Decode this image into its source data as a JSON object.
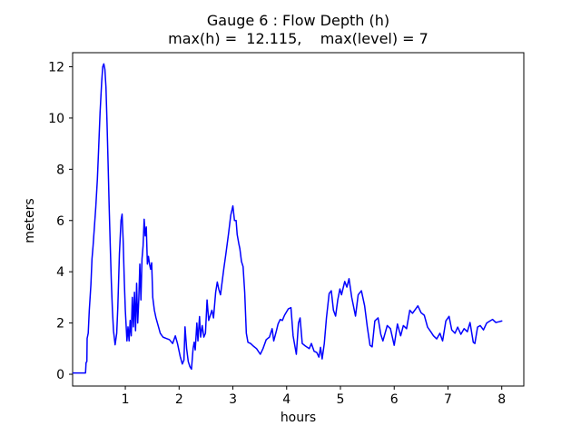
{
  "chart": {
    "title": "Gauge 6 : Flow Depth (h)",
    "subtitle": "max(h) =  12.115,    max(level) = 7",
    "xlabel": "hours",
    "ylabel": "meters"
  },
  "chart_data": {
    "type": "line",
    "title": "Gauge 6 : Flow Depth (h)",
    "subtitle": "max(h) =  12.115,    max(level) = 7",
    "xlabel": "hours",
    "ylabel": "meters",
    "max_h": 12.115,
    "max_level": 7,
    "line_color": "#0000ff",
    "background": "#ffffff",
    "axis_color": "#000000",
    "grid": false,
    "legend": false,
    "xlim": [
      0.02,
      8.41
    ],
    "ylim": [
      -0.46,
      12.55
    ],
    "xticks": [
      1,
      2,
      3,
      4,
      5,
      6,
      7,
      8
    ],
    "yticks": [
      0,
      2,
      4,
      6,
      8,
      10,
      12
    ],
    "series": [
      {
        "name": "flow-depth-h",
        "points": [
          [
            0.03,
            0.05
          ],
          [
            0.26,
            0.05
          ],
          [
            0.27,
            0.45
          ],
          [
            0.285,
            0.5
          ],
          [
            0.29,
            1.4
          ],
          [
            0.31,
            1.6
          ],
          [
            0.33,
            2.5
          ],
          [
            0.36,
            3.5
          ],
          [
            0.38,
            4.5
          ],
          [
            0.4,
            5.0
          ],
          [
            0.42,
            5.6
          ],
          [
            0.45,
            6.5
          ],
          [
            0.48,
            7.6
          ],
          [
            0.5,
            8.6
          ],
          [
            0.53,
            10.2
          ],
          [
            0.56,
            11.4
          ],
          [
            0.58,
            12.0
          ],
          [
            0.6,
            12.115
          ],
          [
            0.62,
            11.9
          ],
          [
            0.64,
            11.2
          ],
          [
            0.66,
            9.8
          ],
          [
            0.68,
            8.2
          ],
          [
            0.7,
            6.5
          ],
          [
            0.72,
            5.0
          ],
          [
            0.74,
            3.6
          ],
          [
            0.76,
            2.5
          ],
          [
            0.78,
            1.7
          ],
          [
            0.81,
            1.15
          ],
          [
            0.84,
            1.6
          ],
          [
            0.86,
            2.6
          ],
          [
            0.89,
            4.7
          ],
          [
            0.92,
            6.0
          ],
          [
            0.94,
            6.25
          ],
          [
            0.96,
            5.2
          ],
          [
            0.98,
            3.7
          ],
          [
            1.0,
            2.5
          ],
          [
            1.03,
            1.3
          ],
          [
            1.05,
            1.85
          ],
          [
            1.07,
            1.3
          ],
          [
            1.09,
            2.1
          ],
          [
            1.11,
            1.5
          ],
          [
            1.13,
            3.0
          ],
          [
            1.15,
            1.85
          ],
          [
            1.17,
            3.2
          ],
          [
            1.19,
            1.7
          ],
          [
            1.21,
            3.55
          ],
          [
            1.23,
            2.0
          ],
          [
            1.25,
            2.9
          ],
          [
            1.27,
            4.3
          ],
          [
            1.29,
            2.9
          ],
          [
            1.31,
            4.5
          ],
          [
            1.33,
            5.0
          ],
          [
            1.35,
            6.05
          ],
          [
            1.37,
            5.4
          ],
          [
            1.39,
            5.75
          ],
          [
            1.41,
            4.3
          ],
          [
            1.43,
            4.6
          ],
          [
            1.45,
            4.3
          ],
          [
            1.47,
            4.1
          ],
          [
            1.49,
            4.35
          ],
          [
            1.51,
            3.0
          ],
          [
            1.54,
            2.5
          ],
          [
            1.57,
            2.2
          ],
          [
            1.61,
            1.9
          ],
          [
            1.65,
            1.6
          ],
          [
            1.7,
            1.45
          ],
          [
            1.76,
            1.4
          ],
          [
            1.82,
            1.35
          ],
          [
            1.88,
            1.2
          ],
          [
            1.93,
            1.5
          ],
          [
            1.97,
            1.2
          ],
          [
            2.02,
            0.7
          ],
          [
            2.06,
            0.4
          ],
          [
            2.09,
            0.55
          ],
          [
            2.11,
            1.85
          ],
          [
            2.14,
            1.0
          ],
          [
            2.17,
            0.5
          ],
          [
            2.2,
            0.3
          ],
          [
            2.23,
            0.2
          ],
          [
            2.26,
            1.0
          ],
          [
            2.28,
            1.25
          ],
          [
            2.3,
            0.95
          ],
          [
            2.33,
            2.0
          ],
          [
            2.35,
            1.3
          ],
          [
            2.38,
            2.25
          ],
          [
            2.4,
            1.45
          ],
          [
            2.43,
            1.9
          ],
          [
            2.46,
            1.45
          ],
          [
            2.49,
            1.6
          ],
          [
            2.52,
            2.9
          ],
          [
            2.55,
            2.1
          ],
          [
            2.58,
            2.3
          ],
          [
            2.61,
            2.5
          ],
          [
            2.64,
            2.2
          ],
          [
            2.68,
            3.2
          ],
          [
            2.71,
            3.6
          ],
          [
            2.74,
            3.3
          ],
          [
            2.77,
            3.1
          ],
          [
            2.8,
            3.6
          ],
          [
            2.83,
            4.1
          ],
          [
            2.87,
            4.7
          ],
          [
            2.92,
            5.5
          ],
          [
            2.96,
            6.2
          ],
          [
            3.0,
            6.57
          ],
          [
            3.03,
            6.0
          ],
          [
            3.06,
            6.0
          ],
          [
            3.08,
            5.45
          ],
          [
            3.11,
            5.1
          ],
          [
            3.13,
            4.9
          ],
          [
            3.16,
            4.4
          ],
          [
            3.19,
            4.2
          ],
          [
            3.22,
            3.2
          ],
          [
            3.25,
            1.6
          ],
          [
            3.28,
            1.25
          ],
          [
            3.33,
            1.2
          ],
          [
            3.38,
            1.1
          ],
          [
            3.44,
            1.0
          ],
          [
            3.51,
            0.78
          ],
          [
            3.56,
            1.0
          ],
          [
            3.62,
            1.35
          ],
          [
            3.68,
            1.45
          ],
          [
            3.73,
            1.78
          ],
          [
            3.76,
            1.3
          ],
          [
            3.81,
            1.7
          ],
          [
            3.84,
            1.96
          ],
          [
            3.88,
            2.14
          ],
          [
            3.92,
            2.1
          ],
          [
            3.96,
            2.3
          ],
          [
            4.03,
            2.55
          ],
          [
            4.08,
            2.6
          ],
          [
            4.12,
            1.5
          ],
          [
            4.18,
            0.78
          ],
          [
            4.22,
            2.0
          ],
          [
            4.25,
            2.2
          ],
          [
            4.29,
            1.2
          ],
          [
            4.35,
            1.1
          ],
          [
            4.42,
            1.0
          ],
          [
            4.46,
            1.2
          ],
          [
            4.51,
            0.9
          ],
          [
            4.56,
            0.85
          ],
          [
            4.6,
            0.67
          ],
          [
            4.63,
            1.05
          ],
          [
            4.66,
            0.6
          ],
          [
            4.7,
            1.2
          ],
          [
            4.74,
            2.2
          ],
          [
            4.79,
            3.15
          ],
          [
            4.83,
            3.26
          ],
          [
            4.87,
            2.5
          ],
          [
            4.91,
            2.27
          ],
          [
            4.95,
            2.9
          ],
          [
            4.99,
            3.33
          ],
          [
            5.02,
            3.1
          ],
          [
            5.08,
            3.62
          ],
          [
            5.12,
            3.4
          ],
          [
            5.16,
            3.73
          ],
          [
            5.21,
            3.0
          ],
          [
            5.28,
            2.27
          ],
          [
            5.33,
            3.1
          ],
          [
            5.39,
            3.26
          ],
          [
            5.45,
            2.67
          ],
          [
            5.5,
            1.84
          ],
          [
            5.55,
            1.13
          ],
          [
            5.59,
            1.07
          ],
          [
            5.64,
            2.08
          ],
          [
            5.7,
            2.2
          ],
          [
            5.75,
            1.56
          ],
          [
            5.79,
            1.3
          ],
          [
            5.87,
            1.9
          ],
          [
            5.93,
            1.78
          ],
          [
            6.0,
            1.13
          ],
          [
            6.06,
            1.96
          ],
          [
            6.12,
            1.5
          ],
          [
            6.17,
            1.9
          ],
          [
            6.23,
            1.78
          ],
          [
            6.29,
            2.5
          ],
          [
            6.34,
            2.38
          ],
          [
            6.4,
            2.55
          ],
          [
            6.44,
            2.67
          ],
          [
            6.5,
            2.4
          ],
          [
            6.56,
            2.3
          ],
          [
            6.62,
            1.84
          ],
          [
            6.68,
            1.66
          ],
          [
            6.73,
            1.5
          ],
          [
            6.79,
            1.38
          ],
          [
            6.85,
            1.6
          ],
          [
            6.9,
            1.3
          ],
          [
            6.96,
            2.08
          ],
          [
            7.02,
            2.26
          ],
          [
            7.07,
            1.73
          ],
          [
            7.13,
            1.6
          ],
          [
            7.18,
            1.84
          ],
          [
            7.24,
            1.56
          ],
          [
            7.3,
            1.78
          ],
          [
            7.36,
            1.66
          ],
          [
            7.41,
            2.02
          ],
          [
            7.47,
            1.25
          ],
          [
            7.5,
            1.2
          ],
          [
            7.55,
            1.84
          ],
          [
            7.6,
            1.9
          ],
          [
            7.66,
            1.73
          ],
          [
            7.72,
            2.0
          ],
          [
            7.78,
            2.08
          ],
          [
            7.83,
            2.14
          ],
          [
            7.89,
            2.02
          ],
          [
            7.95,
            2.05
          ],
          [
            8.0,
            2.08
          ]
        ]
      }
    ]
  }
}
